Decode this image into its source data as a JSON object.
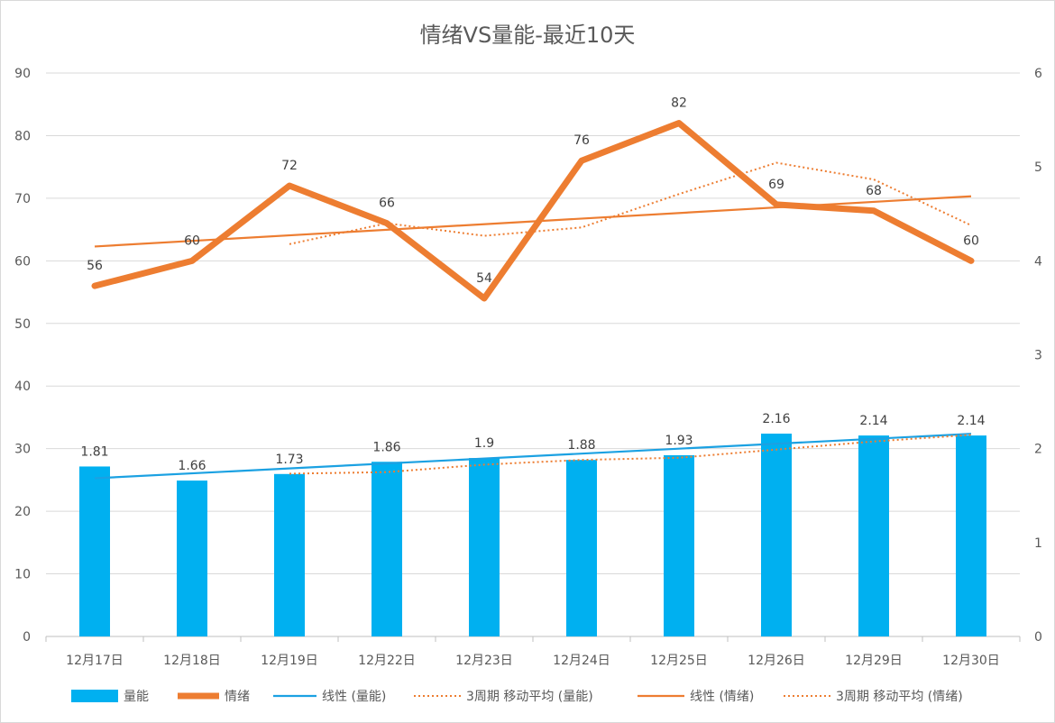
{
  "chart_data": {
    "type": "bar",
    "title": "情绪VS量能-最近10天",
    "categories": [
      "12月17日",
      "12月18日",
      "12月19日",
      "12月22日",
      "12月23日",
      "12月24日",
      "12月25日",
      "12月26日",
      "12月29日",
      "12月30日"
    ],
    "y_left": {
      "range": [
        0,
        90
      ],
      "ticks": [
        "0",
        "10",
        "20",
        "30",
        "40",
        "50",
        "60",
        "70",
        "80",
        "90"
      ]
    },
    "y_right": {
      "range": [
        0,
        6
      ],
      "ticks": [
        "0",
        "1",
        "2",
        "3",
        "4",
        "5",
        "6"
      ]
    },
    "grid": true,
    "legend_position": "bottom",
    "series": [
      {
        "name": "量能",
        "type": "bar",
        "axis": "right",
        "color": "#00b0f0",
        "values": [
          1.81,
          1.66,
          1.73,
          1.86,
          1.9,
          1.88,
          1.93,
          2.16,
          2.14,
          2.14
        ],
        "labels": [
          "1.81",
          "1.66",
          "1.73",
          "1.86",
          "1.9",
          "1.88",
          "1.93",
          "2.16",
          "2.14",
          "2.14"
        ]
      },
      {
        "name": "情绪",
        "type": "line",
        "axis": "left",
        "color": "#ed7d31",
        "values": [
          56,
          60,
          72,
          66,
          54,
          76,
          82,
          69,
          68,
          60
        ],
        "labels": [
          "56",
          "60",
          "72",
          "66",
          "54",
          "76",
          "82",
          "69",
          "68",
          "60"
        ]
      },
      {
        "name": "线性 (量能)",
        "type": "trendline-linear",
        "of": "量能",
        "color": "#1ba1e2",
        "style": "solid"
      },
      {
        "name": "3周期 移动平均 (量能)",
        "type": "trendline-moving-average",
        "of": "量能",
        "period": 3,
        "color": "#ed7d31",
        "style": "dotted"
      },
      {
        "name": "线性 (情绪)",
        "type": "trendline-linear",
        "of": "情绪",
        "color": "#ed7d31",
        "style": "solid"
      },
      {
        "name": "3周期 移动平均 (情绪)",
        "type": "trendline-moving-average",
        "of": "情绪",
        "period": 3,
        "color": "#ed7d31",
        "style": "dotted"
      }
    ]
  }
}
